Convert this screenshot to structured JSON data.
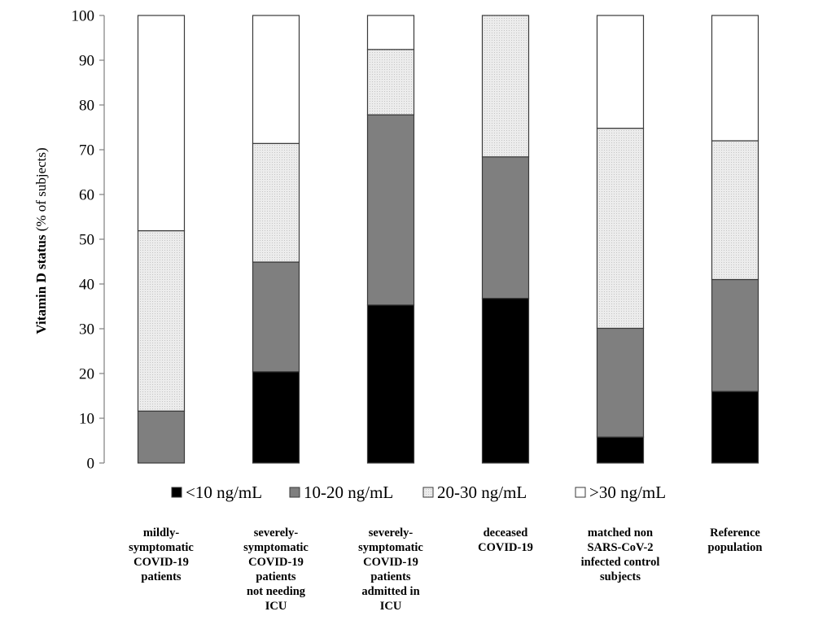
{
  "chart_data": {
    "type": "bar",
    "stacked": true,
    "ylabel_bold": "Vitamin  D status",
    "ylabel_rest": " (% of subjects)",
    "ylim": [
      0,
      100
    ],
    "yticks": [
      "0",
      "10",
      "20",
      "30",
      "40",
      "50",
      "60",
      "70",
      "80",
      "90",
      "100"
    ],
    "grid": false,
    "legend_position": "bottom",
    "categories": [
      [
        "mildly-",
        "symptomatic",
        "COVID-19",
        "patients"
      ],
      [
        "severely-",
        "symptomatic",
        "COVID-19",
        "patients",
        "not needing",
        "ICU"
      ],
      [
        "severely-",
        "symptomatic",
        "COVID-19",
        "patients",
        "admitted  in",
        "ICU"
      ],
      [
        "deceased",
        "COVID-19"
      ],
      [
        "matched non",
        "SARS-CoV-2",
        "infected control",
        "subjects"
      ],
      [
        "Reference",
        "population"
      ]
    ],
    "series": [
      {
        "name": "<10 ng/mL",
        "color": "#000000",
        "values": [
          0,
          20.4,
          35.3,
          36.8,
          5.8,
          16.0
        ]
      },
      {
        "name": "10-20 ng/mL",
        "color": "#7f7f7f",
        "values": [
          11.6,
          24.5,
          42.5,
          31.6,
          24.3,
          25.0
        ]
      },
      {
        "name": "20-30 ng/mL",
        "color": "#e4e4e4",
        "values": [
          40.3,
          26.5,
          14.6,
          31.6,
          44.7,
          31.0
        ]
      },
      {
        "name": ">30 ng/mL",
        "color": "#ffffff",
        "values": [
          48.1,
          28.6,
          7.6,
          0,
          25.2,
          28.0
        ]
      }
    ]
  }
}
